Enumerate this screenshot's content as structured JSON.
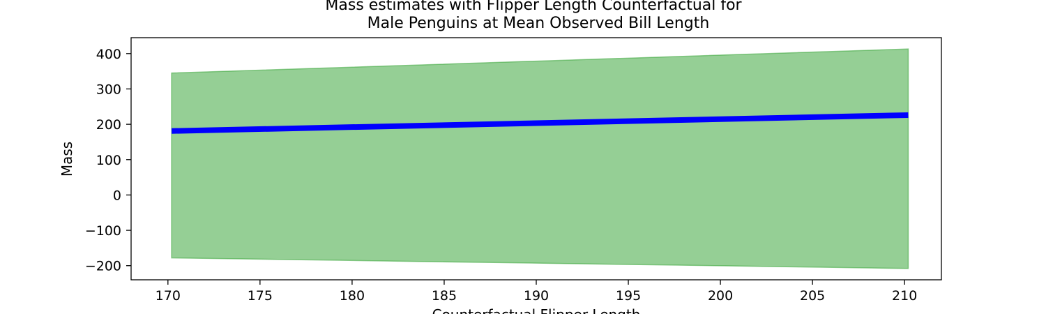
{
  "chart_data": {
    "type": "area",
    "title_line1": "Mass estimates with Flipper Length Counterfactual for",
    "title_line2": "Male Penguins at Mean Observed Bill Length",
    "xlabel": "Counterfactual Flipper Length",
    "ylabel": "Mass",
    "xlim": [
      168.0,
      212.0
    ],
    "ylim": [
      -240,
      445
    ],
    "xticks": [
      170,
      175,
      180,
      185,
      190,
      195,
      200,
      205,
      210
    ],
    "yticks": [
      400,
      300,
      200,
      100,
      0,
      -100,
      -200
    ],
    "grid": false,
    "series": [
      {
        "kind": "line",
        "color": "#0000ff",
        "x": [
          170.2,
          210.2
        ],
        "y": [
          181,
          226
        ]
      },
      {
        "kind": "band",
        "color": "#2ca02c",
        "x": [
          170.2,
          210.2
        ],
        "y_upper": [
          345,
          413
        ],
        "y_lower": [
          -178,
          -208
        ]
      }
    ]
  }
}
